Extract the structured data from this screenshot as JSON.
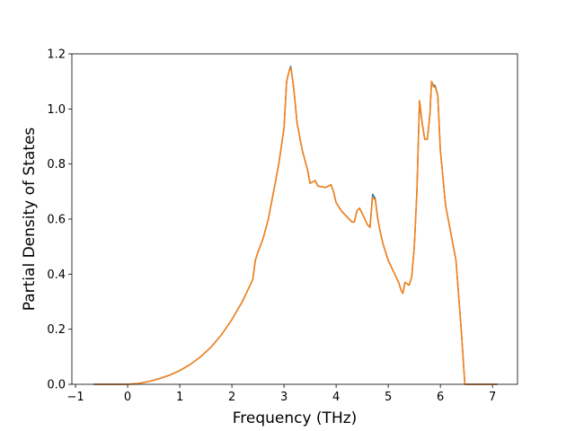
{
  "chart_data": {
    "type": "line",
    "xlabel": "Frequency (THz)",
    "ylabel": "Partial Density of States",
    "x": [
      -0.65,
      0,
      0.2,
      0.4,
      0.6,
      0.8,
      1.0,
      1.2,
      1.4,
      1.6,
      1.8,
      2.0,
      2.2,
      2.3,
      2.4,
      2.45,
      2.5,
      2.6,
      2.7,
      2.8,
      2.9,
      3.0,
      3.05,
      3.1,
      3.13,
      3.17,
      3.2,
      3.25,
      3.35,
      3.45,
      3.5,
      3.6,
      3.65,
      3.8,
      3.9,
      3.95,
      4.0,
      4.1,
      4.2,
      4.3,
      4.35,
      4.4,
      4.45,
      4.5,
      4.6,
      4.65,
      4.7,
      4.75,
      4.8,
      4.85,
      4.9,
      5.0,
      5.1,
      5.2,
      5.25,
      5.28,
      5.32,
      5.4,
      5.45,
      5.5,
      5.55,
      5.6,
      5.65,
      5.7,
      5.75,
      5.8,
      5.83,
      5.87,
      5.9,
      5.95,
      6.0,
      6.1,
      6.2,
      6.3,
      6.4,
      6.47,
      7.1
    ],
    "series": [
      {
        "color": "#1f77b4",
        "values": [
          0,
          0,
          0.003,
          0.01,
          0.02,
          0.033,
          0.05,
          0.072,
          0.1,
          0.135,
          0.18,
          0.235,
          0.3,
          0.34,
          0.38,
          0.45,
          0.48,
          0.53,
          0.6,
          0.7,
          0.8,
          0.93,
          1.1,
          1.14,
          1.155,
          1.1,
          1.05,
          0.95,
          0.85,
          0.78,
          0.73,
          0.74,
          0.72,
          0.715,
          0.725,
          0.7,
          0.66,
          0.63,
          0.61,
          0.59,
          0.59,
          0.63,
          0.64,
          0.62,
          0.58,
          0.57,
          0.69,
          0.675,
          0.6,
          0.55,
          0.51,
          0.45,
          0.41,
          0.37,
          0.34,
          0.33,
          0.37,
          0.36,
          0.39,
          0.5,
          0.7,
          1.03,
          0.95,
          0.89,
          0.89,
          0.98,
          1.1,
          1.085,
          1.085,
          1.05,
          0.85,
          0.65,
          0.55,
          0.45,
          0.2,
          0,
          0
        ]
      },
      {
        "color": "#ff7f0e",
        "values": [
          0,
          0,
          0.003,
          0.01,
          0.02,
          0.033,
          0.05,
          0.072,
          0.1,
          0.135,
          0.18,
          0.235,
          0.3,
          0.34,
          0.38,
          0.45,
          0.48,
          0.53,
          0.6,
          0.7,
          0.8,
          0.93,
          1.1,
          1.14,
          1.15,
          1.1,
          1.05,
          0.95,
          0.85,
          0.78,
          0.73,
          0.74,
          0.72,
          0.715,
          0.725,
          0.7,
          0.66,
          0.63,
          0.61,
          0.59,
          0.59,
          0.63,
          0.64,
          0.62,
          0.58,
          0.57,
          0.68,
          0.67,
          0.6,
          0.55,
          0.51,
          0.45,
          0.41,
          0.37,
          0.34,
          0.33,
          0.37,
          0.36,
          0.39,
          0.5,
          0.7,
          1.03,
          0.95,
          0.89,
          0.89,
          0.98,
          1.1,
          1.08,
          1.08,
          1.05,
          0.85,
          0.65,
          0.55,
          0.45,
          0.2,
          0,
          0
        ]
      }
    ],
    "xlim": [
      -1.07,
      7.48
    ],
    "ylim": [
      0,
      1.2
    ],
    "xticks": [
      {
        "value": -1,
        "label": "−1"
      },
      0,
      1,
      2,
      3,
      4,
      5,
      6,
      7
    ],
    "yticks": [
      {
        "value": 0,
        "label": "0.0"
      },
      0.2,
      0.4,
      0.6,
      0.8,
      {
        "value": 1,
        "label": "1.0"
      },
      1.2
    ],
    "grid": false
  }
}
